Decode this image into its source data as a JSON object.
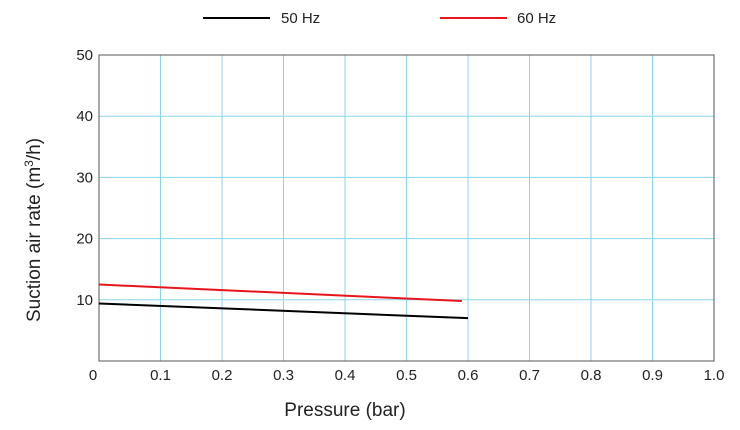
{
  "chart_data": {
    "type": "line",
    "xlabel": "Pressure (bar)",
    "ylabel_main": "Suction air rate (m",
    "ylabel_sup": "3",
    "ylabel_tail": "/h)",
    "xlim": [
      0,
      1.0
    ],
    "ylim": [
      0,
      50
    ],
    "x_ticks": [
      "0",
      "0.1",
      "0.2",
      "0.3",
      "0.4",
      "0.5",
      "0.6",
      "0.7",
      "0.8",
      "0.9",
      "1.0"
    ],
    "y_ticks": [
      "10",
      "20",
      "30",
      "40",
      "50"
    ],
    "grid": true,
    "legend_position": "top",
    "series": [
      {
        "name": "50 Hz",
        "color": "#000000",
        "x": [
          0,
          0.6
        ],
        "y": [
          9.4,
          7.0
        ]
      },
      {
        "name": "60 Hz",
        "color": "#e8151b",
        "x": [
          0,
          0.59
        ],
        "y": [
          12.5,
          9.8
        ]
      }
    ],
    "grid_color": "#87d5ef"
  }
}
